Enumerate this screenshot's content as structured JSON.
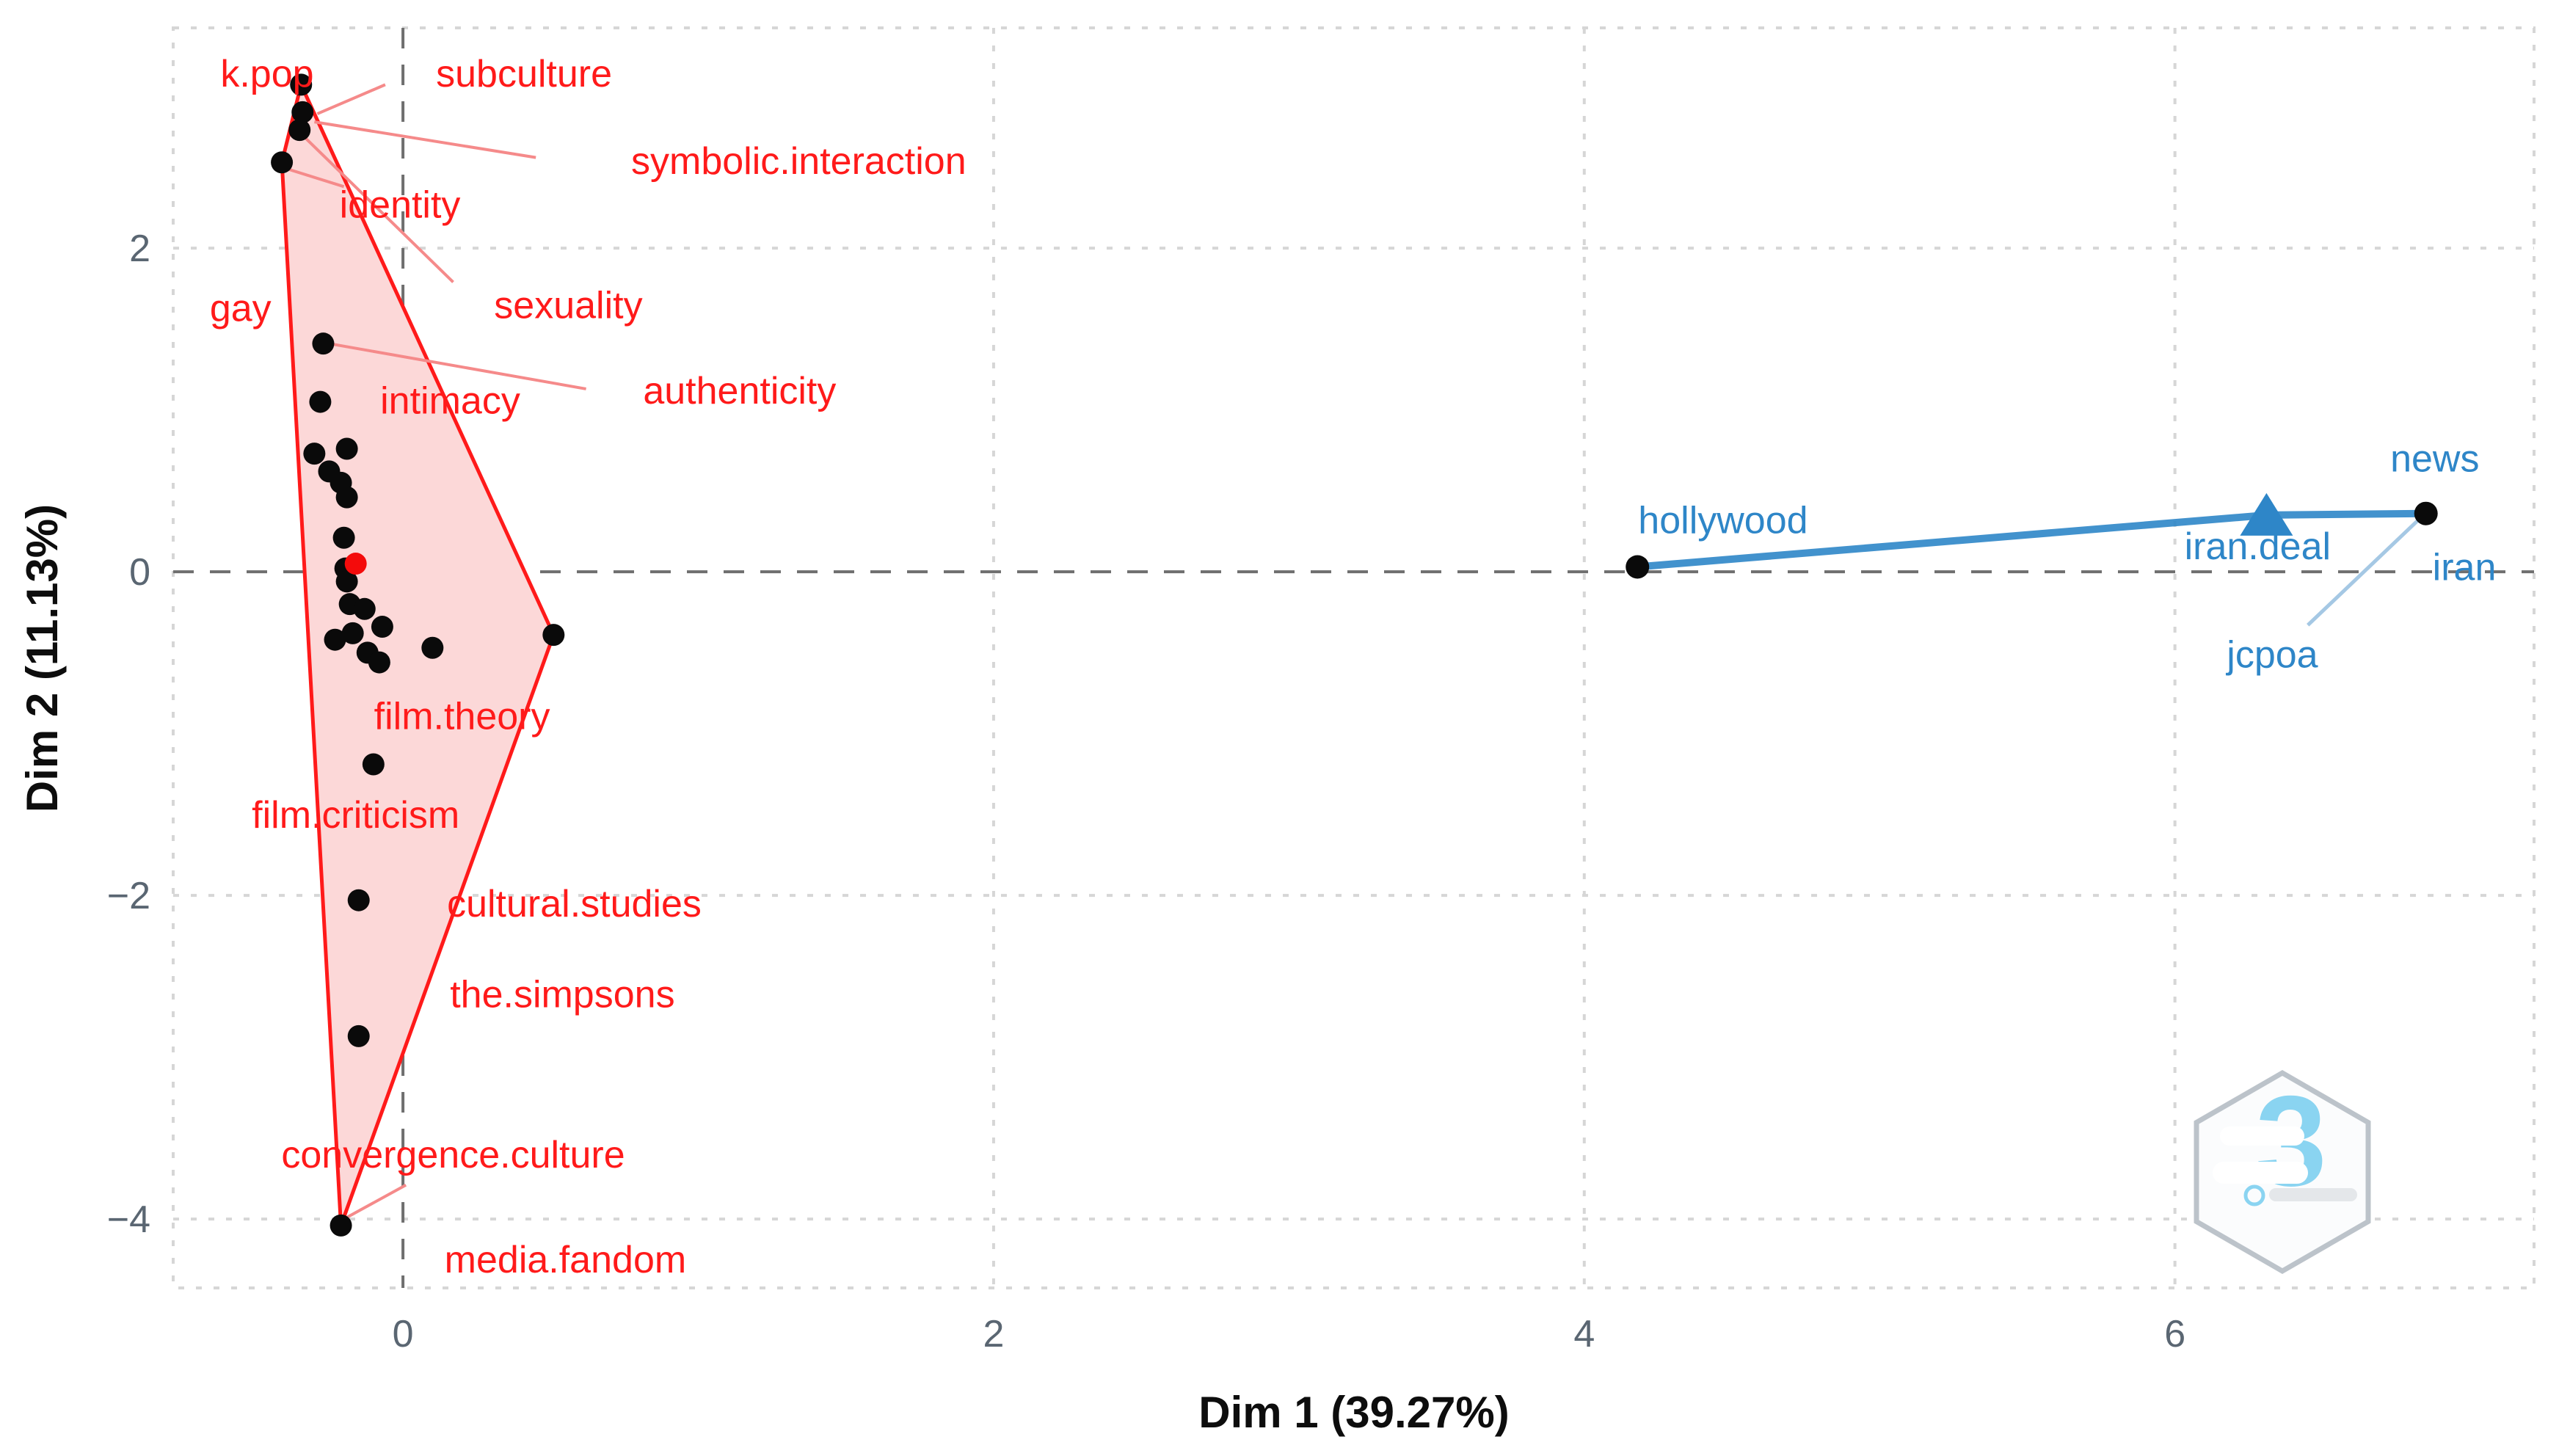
{
  "figure": {
    "background": "#ffffff",
    "kind": "MCA / correspondence biplot"
  },
  "chart_data": {
    "type": "scatter",
    "title": "",
    "xlabel": "Dim 1 (39.27%)",
    "ylabel": "Dim 2 (11.13%)",
    "xlim": [
      -0.778,
      7.216
    ],
    "ylim": [
      -4.426,
      3.361
    ],
    "x_ticks": [
      0,
      2,
      4,
      6
    ],
    "x_tick_labels": [
      "0",
      "2",
      "4",
      "6"
    ],
    "y_ticks": [
      2,
      0,
      -2,
      -4
    ],
    "y_tick_labels": [
      "2",
      "0",
      "−2",
      "−4"
    ],
    "grid": "dashed",
    "zero_lines": true,
    "legend": "none",
    "colors": {
      "grid_light": "#d6d6d6",
      "zero_line": "#6f6f6f",
      "tick_text": "#5a6672",
      "axis_title": "#0d0d0d",
      "point_black": "#0a0a0a",
      "red": "#ff1a1a",
      "red_connector": "#f58a8a",
      "red_hull_fill": "#fcd8d8",
      "red_centroid": "#f40b0b",
      "blue": "#2e86c8",
      "blue_connector": "#a5c8e4",
      "watermark_outline": "#bcc3ca",
      "watermark_glyph": "#8ad4f1"
    },
    "series": [
      {
        "name": "red-cluster",
        "marker": "circle",
        "points": [
          [
            -0.345,
            3.01
          ],
          [
            -0.34,
            2.84
          ],
          [
            -0.35,
            2.73
          ],
          [
            -0.41,
            2.53
          ],
          [
            -0.27,
            1.41
          ],
          [
            -0.28,
            1.05
          ],
          [
            -0.3,
            0.73
          ],
          [
            -0.19,
            0.76
          ],
          [
            -0.25,
            0.62
          ],
          [
            -0.21,
            0.55
          ],
          [
            -0.19,
            0.46
          ],
          [
            -0.2,
            0.21
          ],
          [
            -0.195,
            0.02
          ],
          [
            -0.19,
            -0.06
          ],
          [
            -0.18,
            -0.2
          ],
          [
            -0.13,
            -0.23
          ],
          [
            -0.07,
            -0.34
          ],
          [
            -0.23,
            -0.42
          ],
          [
            -0.17,
            -0.38
          ],
          [
            -0.12,
            -0.5
          ],
          [
            -0.08,
            -0.56
          ],
          [
            0.1,
            -0.47
          ],
          [
            0.51,
            -0.39
          ],
          [
            -0.1,
            -1.19
          ],
          [
            -0.15,
            -2.03
          ],
          [
            -0.15,
            -2.87
          ],
          [
            -0.21,
            -4.04
          ]
        ],
        "centroid": {
          "x": -0.16,
          "y": 0.05,
          "marker": "circle"
        },
        "hull": [
          [
            -0.345,
            3.01
          ],
          [
            0.51,
            -0.39
          ],
          [
            -0.21,
            -4.04
          ],
          [
            -0.41,
            2.53
          ]
        ],
        "labels": [
          {
            "text": "k.pop",
            "x": -0.46,
            "y": 3.08
          },
          {
            "text": "subculture",
            "x": 0.41,
            "y": 3.08
          },
          {
            "text": "symbolic.interaction",
            "x": 1.34,
            "y": 2.54
          },
          {
            "text": "identity",
            "x": -0.01,
            "y": 2.27
          },
          {
            "text": "gay",
            "x": -0.55,
            "y": 1.63
          },
          {
            "text": "sexuality",
            "x": 0.56,
            "y": 1.65
          },
          {
            "text": "intimacy",
            "x": 0.16,
            "y": 1.06
          },
          {
            "text": "authenticity",
            "x": 1.14,
            "y": 1.12
          },
          {
            "text": "film.theory",
            "x": 0.2,
            "y": -0.89
          },
          {
            "text": "film.criticism",
            "x": -0.16,
            "y": -1.5
          },
          {
            "text": "cultural.studies",
            "x": 0.58,
            "y": -2.05
          },
          {
            "text": "the.simpsons",
            "x": 0.54,
            "y": -2.61
          },
          {
            "text": "convergence.culture",
            "x": 0.17,
            "y": -3.6
          },
          {
            "text": "media.fandom",
            "x": 0.55,
            "y": -4.25
          }
        ],
        "connectors": [
          [
            [
              -0.29,
              2.83
            ],
            [
              -0.06,
              3.01
            ]
          ],
          [
            [
              -0.3,
              2.78
            ],
            [
              0.45,
              2.56
            ]
          ],
          [
            [
              -0.41,
              2.5
            ],
            [
              -0.2,
              2.38
            ]
          ],
          [
            [
              -0.33,
              2.68
            ],
            [
              0.17,
              1.79
            ]
          ],
          [
            [
              -0.25,
              1.41
            ],
            [
              0.62,
              1.13
            ]
          ],
          [
            [
              -0.2,
              -4.0
            ],
            [
              0.01,
              -3.79
            ]
          ]
        ]
      },
      {
        "name": "blue-cluster",
        "marker": "circle",
        "points": [
          [
            4.18,
            0.03
          ],
          [
            6.85,
            0.36
          ]
        ],
        "centroid": {
          "x": 6.31,
          "y": 0.35,
          "marker": "triangle"
        },
        "edges": [
          [
            [
              6.31,
              0.35
            ],
            [
              4.18,
              0.03
            ]
          ],
          [
            [
              6.31,
              0.35
            ],
            [
              6.85,
              0.36
            ]
          ]
        ],
        "labels": [
          {
            "text": "hollywood",
            "x": 4.47,
            "y": 0.32
          },
          {
            "text": "news",
            "x": 6.88,
            "y": 0.7
          },
          {
            "text": "iran.deal",
            "x": 6.28,
            "y": 0.16
          },
          {
            "text": "iran",
            "x": 6.98,
            "y": 0.03
          },
          {
            "text": "jcpoa",
            "x": 6.33,
            "y": -0.51
          }
        ],
        "connectors": [
          [
            [
              6.83,
              0.33
            ],
            [
              6.45,
              -0.33
            ]
          ]
        ]
      }
    ],
    "watermark": {
      "shape": "hexagon",
      "glyph": "3"
    }
  }
}
